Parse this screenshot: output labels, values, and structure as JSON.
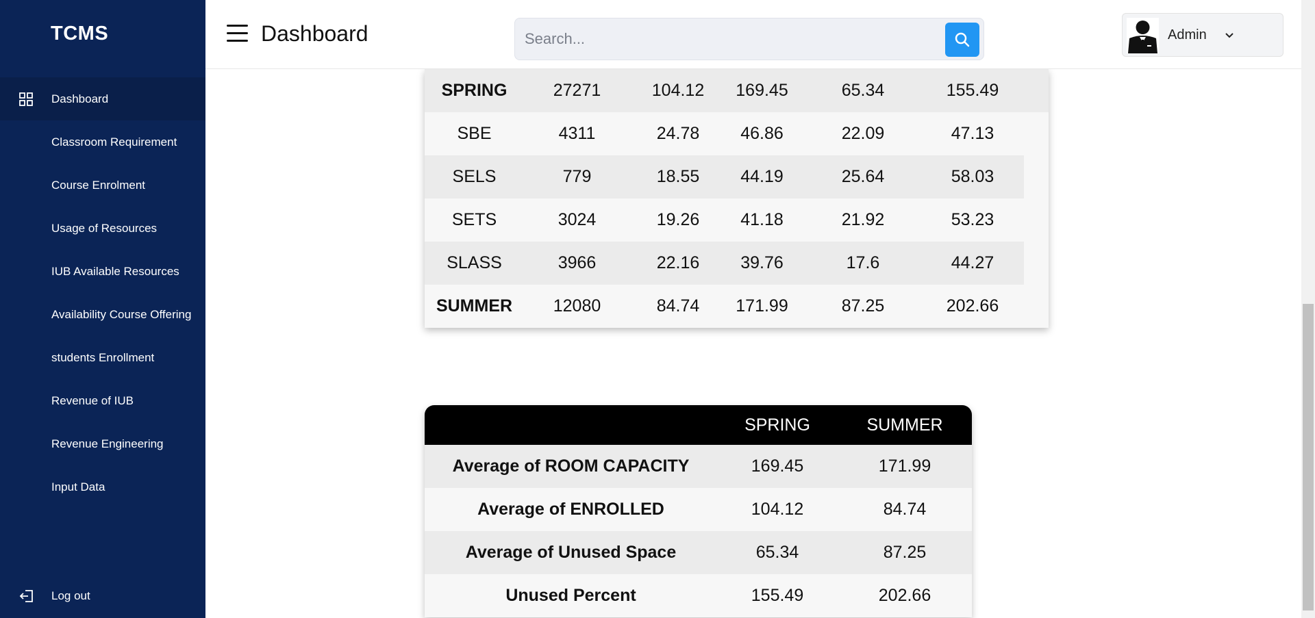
{
  "sidebar": {
    "brand": "TCMS",
    "items": [
      {
        "label": "Dashboard",
        "active": true
      },
      {
        "label": "Classroom Requirement"
      },
      {
        "label": "Course Enrolment"
      },
      {
        "label": "Usage of Resources"
      },
      {
        "label": "IUB Available Resources"
      },
      {
        "label": "Availability Course Offering"
      },
      {
        "label": "students Enrollment"
      },
      {
        "label": "Revenue of IUB"
      },
      {
        "label": "Revenue Engineering"
      },
      {
        "label": "Input Data"
      }
    ],
    "logout_label": "Log out"
  },
  "header": {
    "title": "Dashboard",
    "search_placeholder": "Search...",
    "user_name": "Admin"
  },
  "table1": {
    "rows": [
      {
        "cells": [
          "SPRING",
          "27271",
          "104.12",
          "169.45",
          "65.34",
          "155.49"
        ],
        "bold": true
      },
      {
        "cells": [
          "SBE",
          "4311",
          "24.78",
          "46.86",
          "22.09",
          "47.13"
        ]
      },
      {
        "cells": [
          "SELS",
          "779",
          "18.55",
          "44.19",
          "25.64",
          "58.03"
        ]
      },
      {
        "cells": [
          "SETS",
          "3024",
          "19.26",
          "41.18",
          "21.92",
          "53.23"
        ]
      },
      {
        "cells": [
          "SLASS",
          "3966",
          "22.16",
          "39.76",
          "17.6",
          "44.27"
        ]
      },
      {
        "cells": [
          "SUMMER",
          "12080",
          "84.74",
          "171.99",
          "87.25",
          "202.66"
        ],
        "bold": true
      }
    ]
  },
  "table2": {
    "headers": [
      "",
      "SPRING",
      "SUMMER"
    ],
    "rows": [
      {
        "label": "Average of ROOM CAPACITY",
        "spring": "169.45",
        "summer": "171.99"
      },
      {
        "label": "Average of ENROLLED",
        "spring": "104.12",
        "summer": "84.74"
      },
      {
        "label": "Average of Unused Space",
        "spring": "65.34",
        "summer": "87.25"
      },
      {
        "label": "Unused Percent",
        "spring": "155.49",
        "summer": "202.66"
      }
    ]
  },
  "colors": {
    "sidebar_bg": "#0b2456",
    "sidebar_active": "#0a1f4a",
    "accent": "#2196f3",
    "table_header": "#000000"
  }
}
